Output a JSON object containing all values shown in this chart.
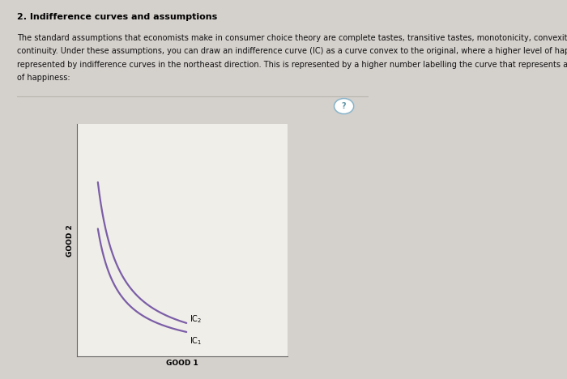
{
  "title": "2. Indifference curves and assumptions",
  "body_line1": "The standard assumptions that economists make in consumer choice theory are complete tastes, transitive tastes, monotonicity, convexity, and",
  "body_line2": "continuity. Under these assumptions, you can draw an indifference curve (IC) as a curve convex to the original, where a higher level of happiness is",
  "body_line3": "represented by indifference curves in the northeast direction. This is represented by a higher number labelling the curve that represents a higher level",
  "body_line4": "of happiness:",
  "xlabel": "GOOD 1",
  "ylabel": "GOOD 2",
  "curve_color": "#7B5EA7",
  "page_bg": "#d4d0cc",
  "outer_box_bg": "#e8e6e2",
  "inner_plot_bg": "#e2dfd9",
  "inner_axes_bg": "#f0eee9",
  "ic1_label": "IC$_1$",
  "ic2_label": "IC$_2$",
  "title_fontsize": 8,
  "body_fontsize": 7,
  "axis_label_fontsize": 6.5,
  "ic_label_fontsize": 7
}
